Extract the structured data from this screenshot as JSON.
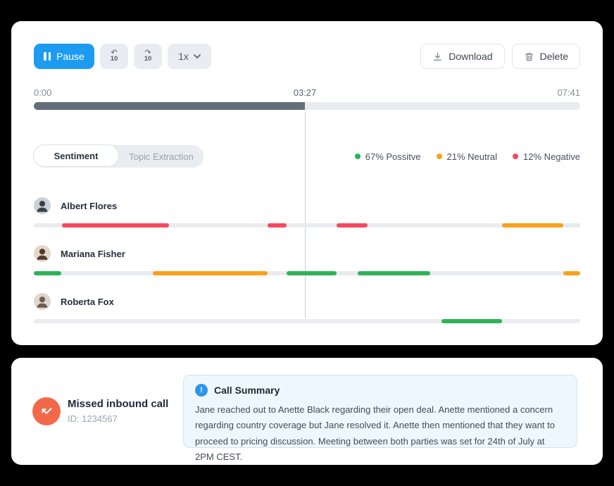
{
  "player": {
    "pause_label": "Pause",
    "rewind_label": "10",
    "forward_label": "10",
    "speed_label": "1x",
    "download_label": "Download",
    "delete_label": "Delete"
  },
  "timeline": {
    "start": "0:00",
    "current": "03:27",
    "end": "07:41",
    "progress_percent": 49.6
  },
  "tabs": [
    {
      "label": "Sentiment",
      "active": true
    },
    {
      "label": "Topic Extraction",
      "active": false
    }
  ],
  "legend": [
    {
      "label": "67% Possitve",
      "sentiment": "positive"
    },
    {
      "label": "21% Neutral",
      "sentiment": "neutral"
    },
    {
      "label": "12% Negative",
      "sentiment": "negative"
    }
  ],
  "colors": {
    "positive": "#2eb357",
    "neutral": "#f9a11b",
    "negative": "#f8485e",
    "accent_blue": "#1d9bf0",
    "info_blue": "#2d96ea",
    "missed_orange": "#f1694a",
    "progress_fill": "#646e7b"
  },
  "speakers": [
    {
      "name": "Albert Flores",
      "avatar_bg": "#c9d2d8",
      "avatar_fg": "#39424b",
      "segments": [
        {
          "sentiment": "negative",
          "start_pct": 5.2,
          "width_pct": 19.6
        },
        {
          "sentiment": "negative",
          "start_pct": 42.8,
          "width_pct": 3.5
        },
        {
          "sentiment": "negative",
          "start_pct": 55.4,
          "width_pct": 5.7
        },
        {
          "sentiment": "neutral",
          "start_pct": 85.7,
          "width_pct": 11.2
        }
      ]
    },
    {
      "name": "Mariana Fisher",
      "avatar_bg": "#e6d6c6",
      "avatar_fg": "#4d3c33",
      "segments": [
        {
          "sentiment": "positive",
          "start_pct": 0,
          "width_pct": 5.0
        },
        {
          "sentiment": "neutral",
          "start_pct": 21.8,
          "width_pct": 21.0
        },
        {
          "sentiment": "positive",
          "start_pct": 46.3,
          "width_pct": 9.1
        },
        {
          "sentiment": "positive",
          "start_pct": 59.3,
          "width_pct": 13.3
        },
        {
          "sentiment": "neutral",
          "start_pct": 96.9,
          "width_pct": 3.1
        }
      ]
    },
    {
      "name": "Roberta Fox",
      "avatar_bg": "#e0d5cd",
      "avatar_fg": "#6e5c50",
      "segments": [
        {
          "sentiment": "positive",
          "start_pct": 74.6,
          "width_pct": 11.1
        }
      ]
    }
  ],
  "call": {
    "type": "Missed inbound call",
    "id": "ID: 1234567"
  },
  "summary": {
    "icon_glyph": "!",
    "title": "Call Summary",
    "body": "Jane reached out to Anette Black regarding their open deal. Anette mentioned a concern regarding country coverage but Jane resolved it. Anette then mentioned that they want to proceed to pricing discussion. Meeting between both parties was set for 24th of July at 2PM CEST."
  }
}
